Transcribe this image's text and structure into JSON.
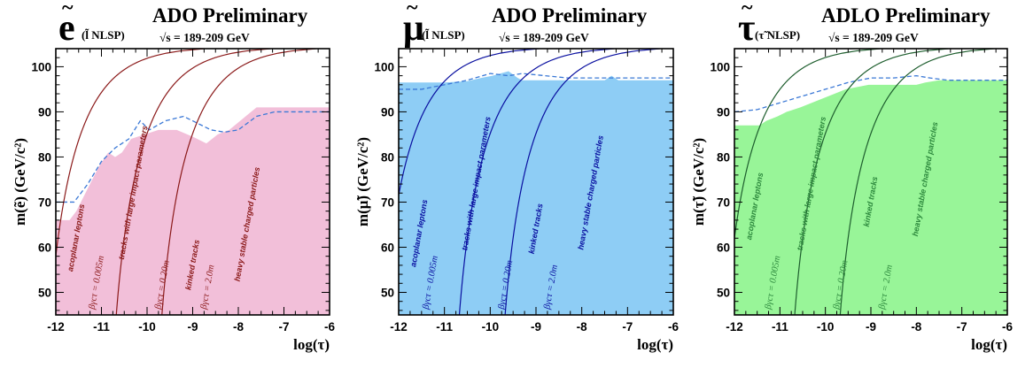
{
  "chart_data": [
    {
      "type": "area",
      "panel": "selectron",
      "particle_symbol": "e",
      "tilde": "~",
      "nlsp_label": "(l̃ NLSP)",
      "title": "ADO Preliminary",
      "energy_label": "√s = 189-209 GeV",
      "xlabel": "log(τ)",
      "ylabel": "m(ẽ) (GeV/c²)",
      "xlim": [
        -12,
        -6
      ],
      "ylim": [
        45,
        104
      ],
      "xticks": [
        -12,
        -11,
        -10,
        -9,
        -8,
        -7,
        -6
      ],
      "yticks": [
        50,
        60,
        70,
        80,
        90,
        100
      ],
      "colors": {
        "fill": "#f2bfd9",
        "line": "#8b1a1a",
        "expected": "#3a78d6",
        "text": "#8b1a1a"
      },
      "excluded": {
        "x": [
          -12,
          -11.7,
          -11.55,
          -11.3,
          -11.05,
          -10.85,
          -10.7,
          -10.55,
          -10.35,
          -10.05,
          -9.75,
          -9.35,
          -9.0,
          -8.7,
          -8.45,
          -8.2,
          -7.6,
          -7.3,
          -6.0
        ],
        "y": [
          66,
          66,
          68,
          73,
          78,
          81,
          80,
          81,
          84,
          85,
          86,
          86,
          84.5,
          83,
          85,
          86,
          91,
          91,
          91
        ]
      },
      "expected": {
        "x": [
          -12,
          -11.6,
          -11.3,
          -11.0,
          -10.7,
          -10.4,
          -10.15,
          -9.95,
          -9.6,
          -9.2,
          -8.9,
          -8.6,
          -8.3,
          -8.0,
          -7.6,
          -7.2,
          -6.0
        ],
        "y": [
          70,
          70,
          74,
          79,
          82,
          84,
          88,
          86,
          88,
          89,
          87.5,
          86,
          85.5,
          86,
          89,
          90,
          90
        ]
      },
      "lifetime_curves": [
        {
          "x0": -11.0,
          "label": "βγcτ = 0.005m"
        },
        {
          "x0": -9.55,
          "label": "βγcτ = 0.20m"
        },
        {
          "x0": -8.55,
          "label": "βγcτ = 2.0m"
        }
      ],
      "region_labels": [
        {
          "text": "acoplanar leptons",
          "x": -11.5,
          "y": 62
        },
        {
          "text": "tracks with large impact parameters",
          "x": -10.25,
          "y": 72
        },
        {
          "text": "kinked tracks",
          "x": -8.95,
          "y": 56
        },
        {
          "text": "heavy stable charged particles",
          "x": -7.75,
          "y": 65
        }
      ]
    },
    {
      "type": "area",
      "panel": "smuon",
      "particle_symbol": "μ",
      "tilde": "~",
      "nlsp_label": "(l̃ NLSP)",
      "title": "ADO Preliminary",
      "energy_label": "√s = 189-209 GeV",
      "xlabel": "log(τ)",
      "ylabel": "m(μ̃) (GeV/c²)",
      "xlim": [
        -12,
        -6
      ],
      "ylim": [
        45,
        104
      ],
      "xticks": [
        -12,
        -11,
        -10,
        -9,
        -8,
        -7,
        -6
      ],
      "yticks": [
        50,
        60,
        70,
        80,
        90,
        100
      ],
      "colors": {
        "fill": "#8ecdf5",
        "line": "#0a10a0",
        "expected": "#3a78d6",
        "text": "#0a10a0"
      },
      "excluded": {
        "x": [
          -12,
          -11.5,
          -11.0,
          -10.5,
          -10.2,
          -9.95,
          -9.6,
          -9.4,
          -9.3,
          -8.5,
          -7.5,
          -7.35,
          -7.2,
          -6.0
        ],
        "y": [
          96.5,
          96.5,
          96.5,
          96.8,
          97.5,
          98,
          99,
          97.5,
          97,
          97,
          97,
          98,
          97,
          97
        ]
      },
      "expected": {
        "x": [
          -12,
          -11.5,
          -11.0,
          -10.5,
          -10.0,
          -9.6,
          -9.3,
          -8.8,
          -8.3,
          -7.8,
          -7.3,
          -6.6,
          -6.0
        ],
        "y": [
          95,
          95,
          96,
          97,
          98.5,
          98,
          98.5,
          98,
          97.5,
          97.5,
          97.5,
          97.5,
          97.5
        ]
      },
      "lifetime_curves": [
        {
          "x0": -11.2,
          "label": "βγcτ = 0.005m"
        },
        {
          "x0": -9.55,
          "label": "βγcτ = 0.20m"
        },
        {
          "x0": -8.55,
          "label": "βγcτ = 2.0m"
        }
      ],
      "region_labels": [
        {
          "text": "acoplanar leptons",
          "x": -11.5,
          "y": 63
        },
        {
          "text": "tracks with large impact parameters",
          "x": -10.25,
          "y": 74
        },
        {
          "text": "kinked tracks",
          "x": -8.95,
          "y": 64
        },
        {
          "text": "heavy stable charged particles",
          "x": -7.75,
          "y": 72
        }
      ]
    },
    {
      "type": "area",
      "panel": "stau",
      "particle_symbol": "τ",
      "tilde": "~",
      "nlsp_label": "(τ̃ NLSP)",
      "title": "ADLO Preliminary",
      "energy_label": "√s = 189-209 GeV",
      "xlabel": "log(τ)",
      "ylabel": "m(τ̃) (GeV/c²)",
      "xlim": [
        -12,
        -6
      ],
      "ylim": [
        45,
        104
      ],
      "xticks": [
        -12,
        -11,
        -10,
        -9,
        -8,
        -7,
        -6
      ],
      "yticks": [
        50,
        60,
        70,
        80,
        90,
        100
      ],
      "colors": {
        "fill": "#98f598",
        "line": "#1e5e2e",
        "expected": "#3a78d6",
        "text": "#2e8a3e"
      },
      "excluded": {
        "x": [
          -12,
          -11.45,
          -11.3,
          -11.05,
          -10.85,
          -10.55,
          -10.3,
          -10.05,
          -9.8,
          -9.55,
          -9.3,
          -9.05,
          -8.5,
          -8.0,
          -7.8,
          -7.5,
          -7.0,
          -6.0
        ],
        "y": [
          87,
          87,
          88,
          89,
          90,
          91,
          92,
          93,
          94,
          95,
          95.5,
          96,
          96,
          96,
          96.5,
          97,
          97,
          97
        ]
      },
      "expected": {
        "x": [
          -12,
          -11.5,
          -11.0,
          -10.5,
          -10.0,
          -9.5,
          -9.0,
          -8.5,
          -8.0,
          -7.7,
          -7.3,
          -6.0
        ],
        "y": [
          90,
          90.5,
          92,
          93.5,
          95,
          96.5,
          97.5,
          97.5,
          98,
          97.5,
          97,
          97
        ]
      },
      "lifetime_curves": [
        {
          "x0": -11.05,
          "label": "βγcτ = 0.005m"
        },
        {
          "x0": -9.55,
          "label": "βγcτ = 0.20m"
        },
        {
          "x0": -8.55,
          "label": "βγcτ = 2.0m"
        }
      ],
      "region_labels": [
        {
          "text": "acoplanar leptons",
          "x": -11.5,
          "y": 69
        },
        {
          "text": "tracks with large impact parameters",
          "x": -10.25,
          "y": 74
        },
        {
          "text": "kinked tracks",
          "x": -8.95,
          "y": 70
        },
        {
          "text": "heavy stable charged particles",
          "x": -7.75,
          "y": 75
        }
      ]
    }
  ]
}
